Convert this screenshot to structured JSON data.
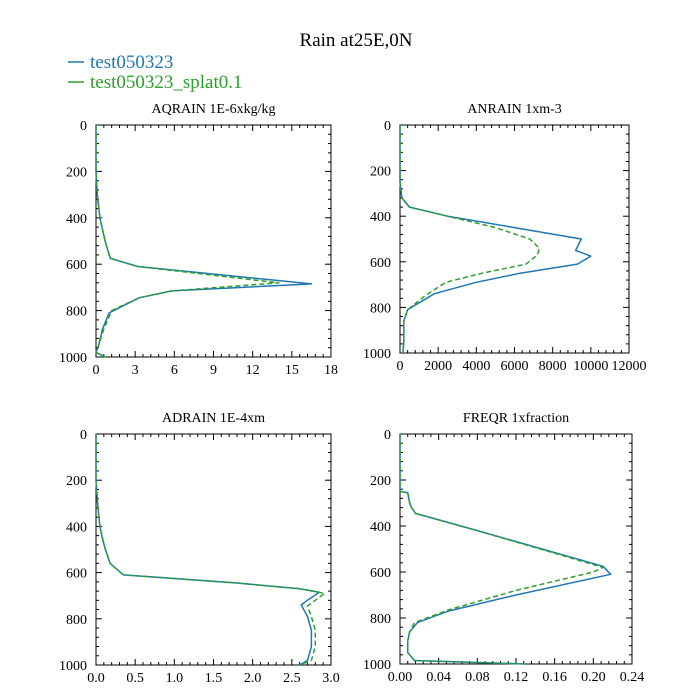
{
  "figure": {
    "title": "Rain at25E,0N"
  },
  "legend": [
    {
      "label": "test050323",
      "color": "#1f77b4",
      "dash": "solid"
    },
    {
      "label": "test050323_splat0.1",
      "color": "#2ca02c",
      "dash": "dashed"
    }
  ],
  "chart_data": [
    {
      "type": "line",
      "title": "AQRAIN  1E-6xkg/kg",
      "xlim": [
        0,
        18
      ],
      "xticks": [
        0,
        3,
        6,
        9,
        12,
        15,
        18
      ],
      "xtick_labels": [
        "0",
        "3",
        "6",
        "9",
        "12",
        "15",
        "18"
      ],
      "ylim": [
        0,
        1000
      ],
      "yticks": [
        0,
        200,
        400,
        600,
        800,
        1000
      ],
      "ytick_labels": [
        "0",
        "200",
        "400",
        "600",
        "800",
        "1000"
      ],
      "yinvert": true,
      "series": [
        {
          "name": "test050323",
          "x": [
            0,
            0,
            0.1,
            0.3,
            0.5,
            0.7,
            0.9,
            1.1,
            3.2,
            16.5,
            5.8,
            3.3,
            1.0,
            0.5,
            0.2,
            0.0,
            0.7
          ],
          "y": [
            0,
            200,
            300,
            400,
            450,
            500,
            540,
            575,
            610,
            685,
            715,
            745,
            810,
            880,
            950,
            980,
            1000
          ]
        },
        {
          "name": "test050323_splat0.1",
          "x": [
            0,
            0,
            0.1,
            0.3,
            0.5,
            0.7,
            0.9,
            1.1,
            3.2,
            14.0,
            5.8,
            3.3,
            1.2,
            0.6,
            0.2,
            0.0,
            0.7
          ],
          "y": [
            0,
            200,
            300,
            400,
            450,
            500,
            540,
            575,
            610,
            680,
            715,
            745,
            800,
            880,
            950,
            980,
            1000
          ]
        }
      ]
    },
    {
      "type": "line",
      "title": "ANRAIN  1xm-3",
      "xlim": [
        0,
        12000
      ],
      "xticks": [
        0,
        2000,
        4000,
        6000,
        8000,
        10000,
        12000
      ],
      "xtick_labels": [
        "0",
        "2000",
        "4000",
        "6000",
        "8000",
        "10000",
        "12000"
      ],
      "ylim": [
        0,
        1000
      ],
      "yticks": [
        0,
        200,
        400,
        600,
        800,
        1000
      ],
      "ytick_labels": [
        "0",
        "200",
        "400",
        "600",
        "800",
        "1000"
      ],
      "yinvert": true,
      "series": [
        {
          "name": "test050323",
          "x": [
            0,
            0,
            100,
            500,
            2500,
            6000,
            9500,
            9200,
            10000,
            9300,
            6300,
            4000,
            1800,
            400,
            200,
            200,
            150
          ],
          "y": [
            0,
            250,
            320,
            360,
            400,
            450,
            500,
            550,
            575,
            610,
            650,
            690,
            740,
            810,
            860,
            950,
            1000
          ]
        },
        {
          "name": "test050323_splat0.1",
          "x": [
            0,
            0,
            100,
            500,
            2500,
            5000,
            6800,
            7300,
            7200,
            6600,
            4300,
            2400,
            1300,
            400,
            200,
            200,
            150
          ],
          "y": [
            0,
            250,
            320,
            360,
            400,
            450,
            500,
            540,
            570,
            610,
            650,
            690,
            750,
            810,
            860,
            950,
            1000
          ]
        }
      ]
    },
    {
      "type": "line",
      "title": "ADRAIN  1E-4xm",
      "xlim": [
        0,
        3.0
      ],
      "xticks": [
        0,
        0.5,
        1.0,
        1.5,
        2.0,
        2.5,
        3.0
      ],
      "xtick_labels": [
        "0.0",
        "0.5",
        "1.0",
        "1.5",
        "2.0",
        "2.5",
        "3.0"
      ],
      "ylim": [
        0,
        1000
      ],
      "yticks": [
        0,
        200,
        400,
        600,
        800,
        1000
      ],
      "ytick_labels": [
        "0",
        "200",
        "400",
        "600",
        "800",
        "1000"
      ],
      "yinvert": true,
      "series": [
        {
          "name": "test050323",
          "x": [
            0,
            0,
            0.02,
            0.05,
            0.08,
            0.12,
            0.18,
            0.35,
            1.8,
            2.6,
            2.85,
            2.7,
            2.62,
            2.7,
            2.75,
            2.75,
            2.7,
            2.6
          ],
          "y": [
            0,
            200,
            300,
            400,
            450,
            500,
            560,
            610,
            645,
            670,
            685,
            720,
            740,
            790,
            850,
            920,
            980,
            1000
          ]
        },
        {
          "name": "test050323_splat0.1",
          "x": [
            0,
            0,
            0.02,
            0.05,
            0.08,
            0.12,
            0.18,
            0.35,
            1.8,
            2.6,
            2.92,
            2.8,
            2.7,
            2.75,
            2.8,
            2.8,
            2.75,
            2.6
          ],
          "y": [
            0,
            200,
            300,
            400,
            450,
            500,
            560,
            610,
            645,
            670,
            690,
            720,
            745,
            790,
            850,
            920,
            980,
            1000
          ]
        }
      ]
    },
    {
      "type": "line",
      "title": "FREQR  1xfraction",
      "xlim": [
        0,
        0.24
      ],
      "xticks": [
        0,
        0.04,
        0.08,
        0.12,
        0.16,
        0.2,
        0.24
      ],
      "xtick_labels": [
        "0.00",
        "0.04",
        "0.08",
        "0.12",
        "0.16",
        "0.20",
        "0.24"
      ],
      "ylim": [
        0,
        1000
      ],
      "yticks": [
        0,
        200,
        400,
        600,
        800,
        1000
      ],
      "ytick_labels": [
        "0",
        "200",
        "400",
        "600",
        "800",
        "1000"
      ],
      "yinvert": true,
      "series": [
        {
          "name": "test050323",
          "x": [
            0,
            0,
            0.008,
            0.01,
            0.012,
            0.016,
            0.08,
            0.21,
            0.218,
            0.12,
            0.05,
            0.018,
            0.01,
            0.008,
            0.008,
            0.015,
            0.13
          ],
          "y": [
            0,
            250,
            255,
            300,
            320,
            345,
            420,
            575,
            610,
            700,
            770,
            820,
            860,
            900,
            950,
            985,
            1000
          ]
        },
        {
          "name": "test050323_splat0.1",
          "x": [
            0,
            0,
            0.008,
            0.01,
            0.012,
            0.016,
            0.08,
            0.21,
            0.2,
            0.12,
            0.05,
            0.015,
            0.01,
            0.008,
            0.008,
            0.015,
            0.13
          ],
          "y": [
            0,
            250,
            255,
            300,
            320,
            345,
            420,
            580,
            600,
            680,
            765,
            820,
            860,
            900,
            950,
            985,
            1000
          ]
        }
      ]
    }
  ]
}
